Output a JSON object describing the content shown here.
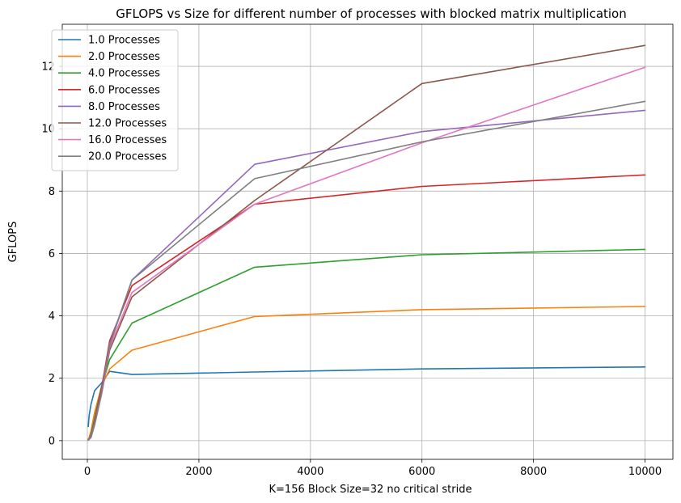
{
  "chart_data": {
    "type": "line",
    "title": "GFLOPS vs Size for different number of processes with blocked matrix multiplication",
    "xlabel": "K=156 Block Size=32 no critical stride",
    "ylabel": "GFLOPS",
    "xlim": [
      -450,
      10500
    ],
    "ylim": [
      -0.6,
      13.35
    ],
    "xticks": [
      0,
      2000,
      4000,
      6000,
      8000,
      10000
    ],
    "yticks": [
      0,
      2,
      4,
      6,
      8,
      10,
      12
    ],
    "xtick_labels": [
      "0",
      "2000",
      "4000",
      "6000",
      "8000",
      "10000"
    ],
    "ytick_labels": [
      "0",
      "2",
      "4",
      "6",
      "8",
      "10",
      "12"
    ],
    "grid": true,
    "legend_position": "top-left",
    "x": [
      16,
      32,
      64,
      128,
      256,
      400,
      800,
      3000,
      6000,
      10000
    ],
    "series": [
      {
        "name": "1.0 Processes",
        "color": "#1f77b4",
        "values": [
          0.45,
          0.8,
          1.15,
          1.6,
          1.85,
          2.22,
          2.12,
          2.2,
          2.3,
          2.36
        ]
      },
      {
        "name": "2.0 Processes",
        "color": "#ff7f0e",
        "values": [
          0.05,
          0.1,
          0.3,
          0.9,
          1.75,
          2.3,
          2.9,
          3.98,
          4.2,
          4.3
        ]
      },
      {
        "name": "4.0 Processes",
        "color": "#2ca02c",
        "values": [
          0.03,
          0.05,
          0.2,
          0.7,
          1.75,
          2.6,
          3.77,
          5.56,
          5.96,
          6.13
        ]
      },
      {
        "name": "6.0 Processes",
        "color": "#d62728",
        "values": [
          0.02,
          0.05,
          0.15,
          0.6,
          1.7,
          3.2,
          4.97,
          7.58,
          8.15,
          8.52
        ]
      },
      {
        "name": "8.0 Processes",
        "color": "#9467bd",
        "values": [
          0.02,
          0.05,
          0.15,
          0.55,
          1.6,
          3.1,
          5.15,
          8.86,
          9.91,
          10.59
        ]
      },
      {
        "name": "12.0 Processes",
        "color": "#8c564b",
        "values": [
          0.02,
          0.04,
          0.1,
          0.5,
          1.5,
          2.9,
          4.61,
          7.7,
          11.45,
          12.67
        ]
      },
      {
        "name": "16.0 Processes",
        "color": "#e377c2",
        "values": [
          0.02,
          0.04,
          0.1,
          0.5,
          1.5,
          3.0,
          4.75,
          7.58,
          9.55,
          11.97
        ]
      },
      {
        "name": "20.0 Processes",
        "color": "#7f7f7f",
        "values": [
          0.02,
          0.04,
          0.1,
          0.5,
          1.55,
          3.05,
          5.15,
          8.4,
          9.58,
          10.88
        ]
      }
    ]
  }
}
